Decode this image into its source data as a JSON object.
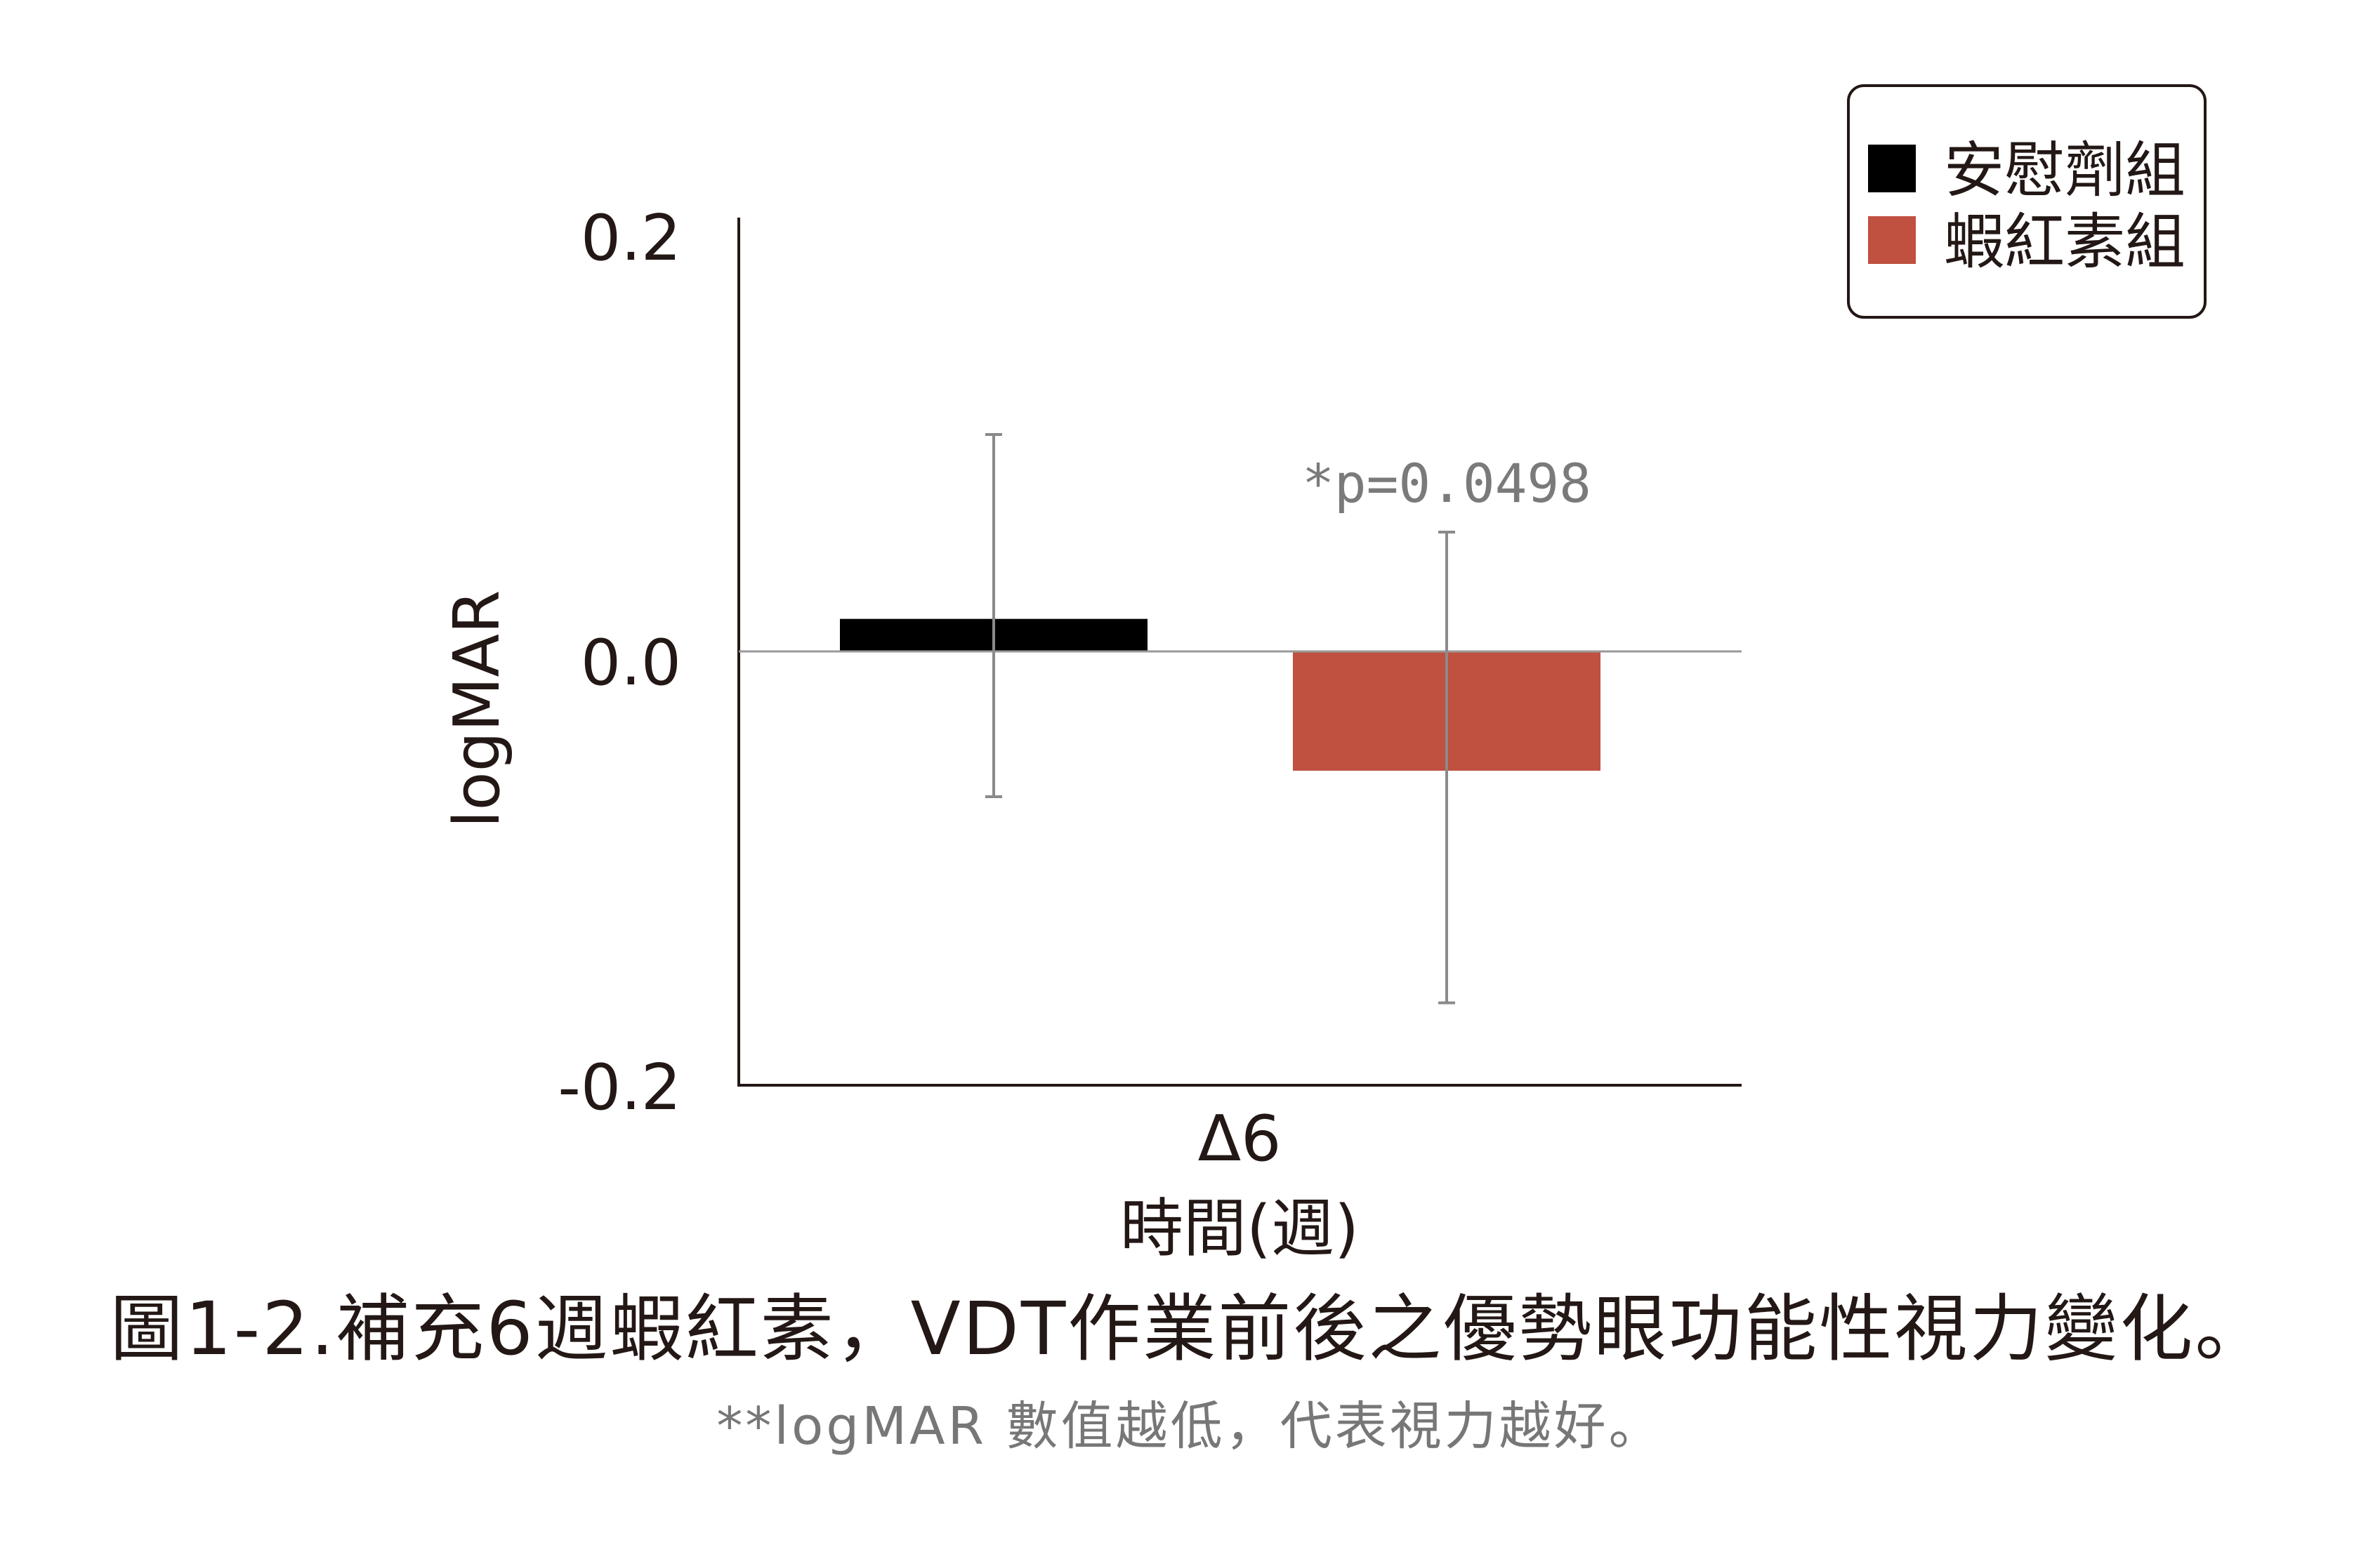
{
  "chart_data": {
    "type": "bar",
    "categories": [
      "Δ6"
    ],
    "series": [
      {
        "name": "安慰劑組",
        "color": "#000000",
        "values": [
          0.015
        ],
        "error_upper": [
          0.1
        ],
        "error_lower": [
          -0.067
        ]
      },
      {
        "name": "蝦紅素組",
        "color": "#c05040",
        "values": [
          -0.055
        ],
        "error_upper": [
          0.055
        ],
        "error_lower": [
          -0.162
        ]
      }
    ],
    "ylabel": "logMAR",
    "xlabel": "時間(週)",
    "ylim": [
      -0.2,
      0.2
    ],
    "yticks": [
      "0.2",
      "0.0",
      "-0.2"
    ],
    "annotation": "*p=0.0498",
    "legend_position": "top-right",
    "grid": false
  },
  "caption": "圖1-2.補充6週蝦紅素，VDT作業前後之優勢眼功能性視力變化。",
  "footnote": "**logMAR 數值越低，代表視力越好。"
}
